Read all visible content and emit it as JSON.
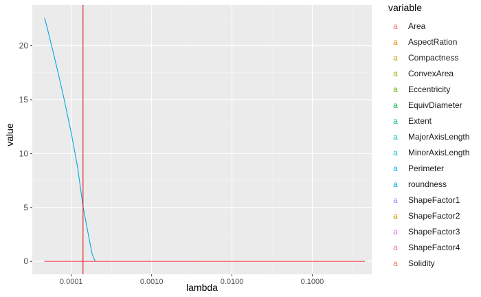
{
  "chart_data": {
    "type": "line",
    "xlabel": "lambda",
    "ylabel": "value",
    "x_scale": "log10",
    "xlim": [
      3.27e-05,
      0.55
    ],
    "ylim": [
      -1.2,
      23.8
    ],
    "x_ticks": [
      0.0001,
      0.001,
      0.01,
      0.1
    ],
    "x_tick_labels": [
      "0.0001",
      "0.0010",
      "0.0100",
      "0.1000"
    ],
    "y_ticks": [
      0,
      5,
      10,
      15,
      20
    ],
    "y_tick_labels": [
      "0",
      "5",
      "10",
      "15",
      "20"
    ],
    "grid": true,
    "legend_placement": "right",
    "legend_title": "variable",
    "vline": {
      "x": 0.00014,
      "color": "#E41A1C"
    },
    "series": [
      {
        "name": "Area",
        "color": "#F8766D",
        "x": [
          4.65e-05,
          0.45
        ],
        "y": [
          0,
          0
        ]
      },
      {
        "name": "AspectRation",
        "color": "#E58700",
        "x": [
          4.65e-05,
          0.45
        ],
        "y": [
          0,
          0
        ]
      },
      {
        "name": "Compactness",
        "color": "#C99800",
        "x": [
          4.65e-05,
          0.45
        ],
        "y": [
          0,
          0
        ]
      },
      {
        "name": "ConvexArea",
        "color": "#A3A500",
        "x": [
          4.65e-05,
          0.45
        ],
        "y": [
          0,
          0
        ]
      },
      {
        "name": "Eccentricity",
        "color": "#6BB100",
        "x": [
          4.65e-05,
          0.45
        ],
        "y": [
          0,
          0
        ]
      },
      {
        "name": "EquivDiameter",
        "color": "#00BA38",
        "x": [
          4.65e-05,
          0.45
        ],
        "y": [
          0,
          0
        ]
      },
      {
        "name": "Extent",
        "color": "#00BF7D",
        "x": [
          4.65e-05,
          0.45
        ],
        "y": [
          0,
          0
        ]
      },
      {
        "name": "MajorAxisLength",
        "color": "#00C0AF",
        "x": [
          4.65e-05,
          0.45
        ],
        "y": [
          0,
          0
        ]
      },
      {
        "name": "MinorAxisLength",
        "color": "#00BCD8",
        "x": [
          4.65e-05,
          0.45
        ],
        "y": [
          0,
          0
        ]
      },
      {
        "name": "Perimeter",
        "color": "#00B0F6",
        "x": [
          4.65e-05,
          0.0036
        ],
        "y": [
          0,
          0
        ]
      },
      {
        "name": "roundness",
        "color": "#00A9E0",
        "x": [
          4.65e-05,
          5e-05,
          6e-05,
          7e-05,
          8e-05,
          9e-05,
          0.0001,
          0.00012,
          0.00014,
          0.00016,
          0.00018,
          0.00019,
          0.0002,
          0.0003,
          0.001,
          0.0036
        ],
        "y": [
          22.6,
          21.7,
          19.3,
          17.2,
          15.3,
          13.5,
          11.9,
          8.7,
          5.1,
          2.8,
          0.8,
          0.3,
          0,
          0,
          0,
          0
        ]
      },
      {
        "name": "ShapeFactor1",
        "color": "#9590FF",
        "x": [
          4.65e-05,
          0.45
        ],
        "y": [
          0,
          0
        ]
      },
      {
        "name": "ShapeFactor2",
        "color": "#D89000",
        "x": [
          4.65e-05,
          0.45
        ],
        "y": [
          0,
          0
        ]
      },
      {
        "name": "ShapeFactor3",
        "color": "#E76BF3",
        "x": [
          4.65e-05,
          0.45
        ],
        "y": [
          0,
          0
        ]
      },
      {
        "name": "ShapeFactor4",
        "color": "#FF62BC",
        "x": [
          4.65e-05,
          0.45
        ],
        "y": [
          0,
          0
        ]
      },
      {
        "name": "Solidity",
        "color": "#F8766D",
        "x": [
          4.65e-05,
          0.45
        ],
        "y": [
          0,
          0
        ]
      }
    ],
    "legend_key_glyph": "a"
  }
}
